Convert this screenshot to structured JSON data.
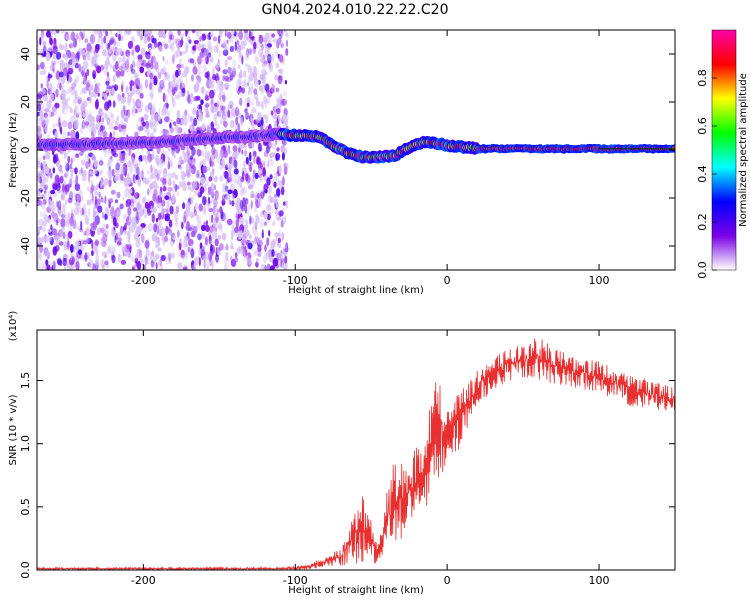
{
  "title": "GN04.2024.010.22.22.C20",
  "chart_data": [
    {
      "type": "heatmap",
      "xlabel": "Height of straight line (km)",
      "ylabel": "Frequency (Hz)",
      "xlim": [
        -270,
        150
      ],
      "ylim": [
        -50,
        50
      ],
      "x_ticks": [
        -200,
        -100,
        0,
        100
      ],
      "y_ticks": [
        -40,
        -20,
        0,
        20,
        40
      ],
      "colorbar": {
        "label": "Normalized spectral amplitude",
        "range": [
          0.0,
          1.0
        ],
        "ticks": [
          "0.0",
          "0.2",
          "0.4",
          "0.6",
          "0.8"
        ],
        "colormap": [
          "#ffffff",
          "#7a00e6",
          "#0000ff",
          "#00ffff",
          "#00ff00",
          "#ffff00",
          "#ff0000",
          "#ff00aa"
        ]
      },
      "noise_region_x": [
        -270,
        -105
      ],
      "ridge": [
        {
          "x": -270,
          "y": 2.0
        },
        {
          "x": -200,
          "y": 3.0
        },
        {
          "x": -160,
          "y": 4.5
        },
        {
          "x": -110,
          "y": 6.5
        },
        {
          "x": -95,
          "y": 6.0
        },
        {
          "x": -85,
          "y": 5.5
        },
        {
          "x": -75,
          "y": 2.0
        },
        {
          "x": -65,
          "y": -1.5
        },
        {
          "x": -55,
          "y": -3.0
        },
        {
          "x": -45,
          "y": -3.0
        },
        {
          "x": -35,
          "y": -2.5
        },
        {
          "x": -25,
          "y": 1.0
        },
        {
          "x": -15,
          "y": 3.5
        },
        {
          "x": 0,
          "y": 2.0
        },
        {
          "x": 20,
          "y": 0.5
        },
        {
          "x": 60,
          "y": 0.5
        },
        {
          "x": 100,
          "y": 0.5
        },
        {
          "x": 150,
          "y": 0.5
        }
      ]
    },
    {
      "type": "line",
      "xlabel": "Height of straight line (km)",
      "ylabel": "SNR (10 * v/v)",
      "y_multiplier": "(x10⁴)",
      "xlim": [
        -270,
        150
      ],
      "ylim": [
        0.0,
        1.9
      ],
      "x_ticks": [
        -200,
        -100,
        0,
        100
      ],
      "y_ticks": [
        "0.0",
        "0.5",
        "1.0",
        "1.5"
      ],
      "series_color": "#e83030",
      "envelope": [
        {
          "x": -270,
          "low": 0.0,
          "high": 0.02
        },
        {
          "x": -110,
          "low": 0.0,
          "high": 0.02
        },
        {
          "x": -95,
          "low": 0.0,
          "high": 0.04
        },
        {
          "x": -80,
          "low": 0.02,
          "high": 0.1
        },
        {
          "x": -70,
          "low": 0.03,
          "high": 0.18
        },
        {
          "x": -60,
          "low": 0.05,
          "high": 0.5
        },
        {
          "x": -55,
          "low": 0.05,
          "high": 0.6
        },
        {
          "x": -50,
          "low": 0.05,
          "high": 0.4
        },
        {
          "x": -45,
          "low": 0.05,
          "high": 0.2
        },
        {
          "x": -40,
          "low": 0.2,
          "high": 0.7
        },
        {
          "x": -35,
          "low": 0.1,
          "high": 0.85
        },
        {
          "x": -25,
          "low": 0.4,
          "high": 0.9
        },
        {
          "x": -15,
          "low": 0.5,
          "high": 1.05
        },
        {
          "x": -10,
          "low": 0.5,
          "high": 1.45
        },
        {
          "x": -5,
          "low": 0.7,
          "high": 1.6
        },
        {
          "x": 0,
          "low": 0.8,
          "high": 1.25
        },
        {
          "x": 10,
          "low": 1.0,
          "high": 1.45
        },
        {
          "x": 20,
          "low": 1.3,
          "high": 1.6
        },
        {
          "x": 40,
          "low": 1.5,
          "high": 1.75
        },
        {
          "x": 60,
          "low": 1.5,
          "high": 1.85
        },
        {
          "x": 80,
          "low": 1.45,
          "high": 1.7
        },
        {
          "x": 100,
          "low": 1.4,
          "high": 1.65
        },
        {
          "x": 120,
          "low": 1.3,
          "high": 1.55
        },
        {
          "x": 150,
          "low": 1.25,
          "high": 1.45
        }
      ]
    }
  ]
}
